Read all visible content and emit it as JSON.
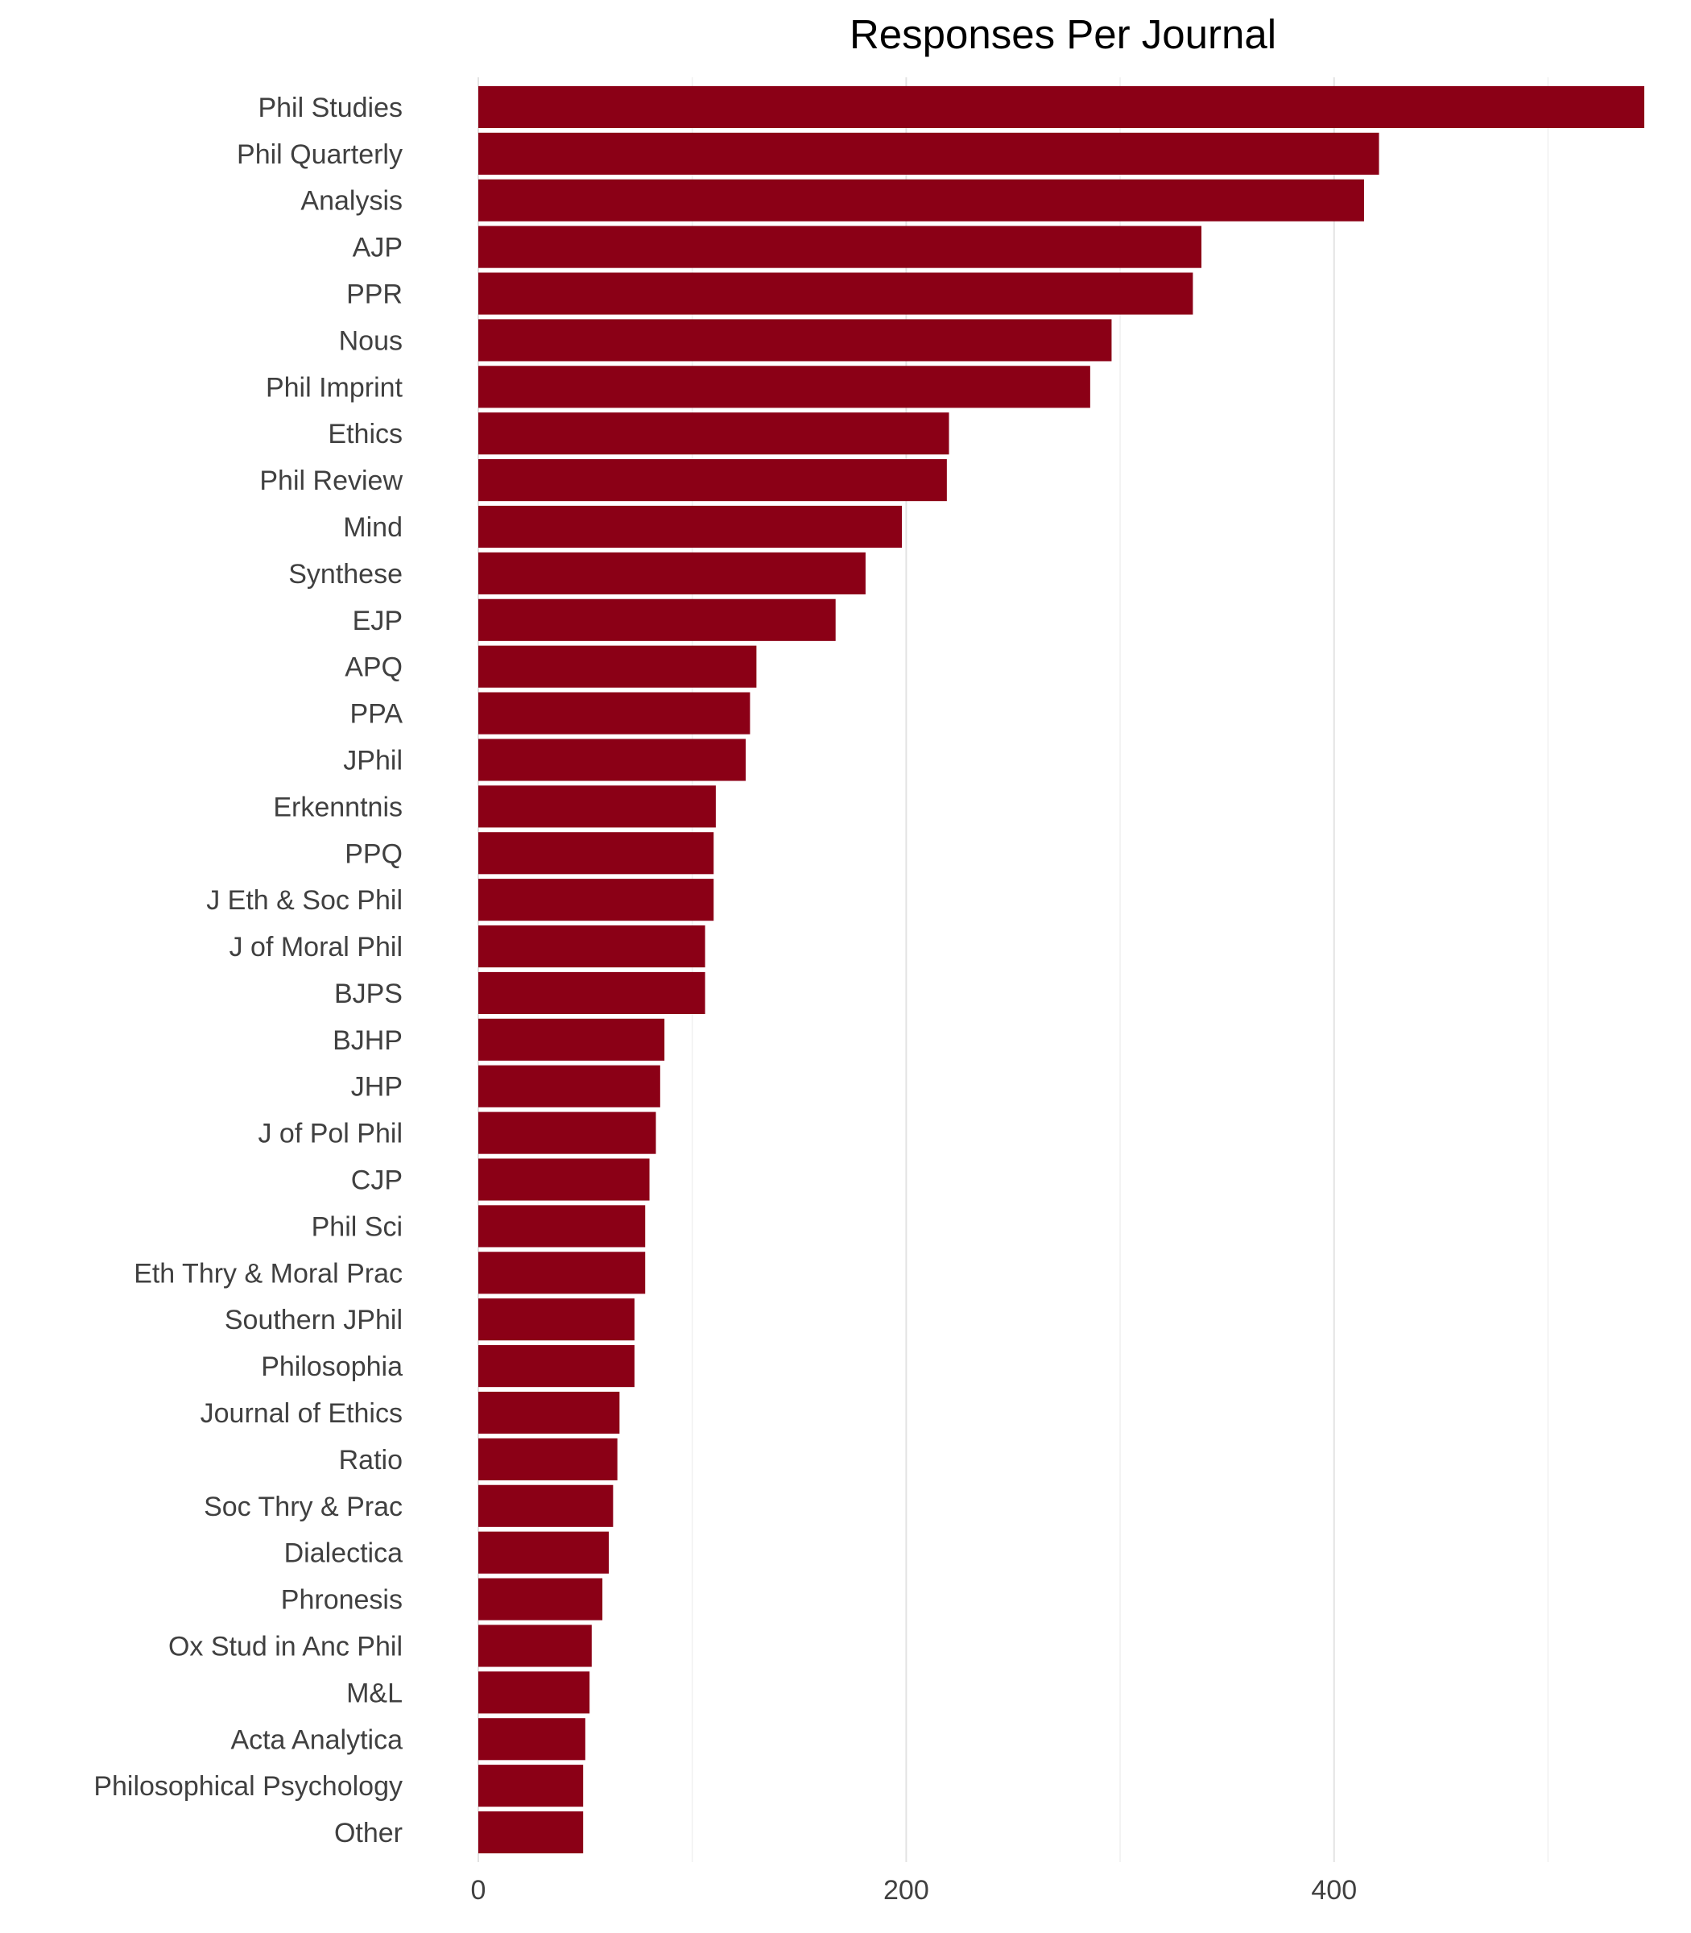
{
  "chart_data": {
    "type": "bar",
    "orientation": "horizontal",
    "title": "Responses Per Journal",
    "xlabel": "",
    "ylabel": "",
    "xlim": [
      0,
      545
    ],
    "xticks": [
      0,
      200,
      400
    ],
    "grid": true,
    "legend": "none",
    "bar_color": "#8b0016",
    "categories": [
      "Phil Studies",
      "Phil Quarterly",
      "Analysis",
      "AJP",
      "PPR",
      "Nous",
      "Phil Imprint",
      "Ethics",
      "Phil Review",
      "Mind",
      "Synthese",
      "EJP",
      "APQ",
      "PPA",
      "JPhil",
      "Erkenntnis",
      "PPQ",
      "J Eth & Soc Phil",
      "J of Moral Phil",
      "BJPS",
      "BJHP",
      "JHP",
      "J of Pol Phil",
      "CJP",
      "Phil Sci",
      "Eth Thry & Moral Prac",
      "Southern JPhil",
      "Philosophia",
      "Journal of Ethics",
      "Ratio",
      "Soc Thry & Prac",
      "Dialectica",
      "Phronesis",
      "Ox Stud in Anc Phil",
      "M&L",
      "Acta Analytica",
      "Philosophical Psychology",
      "Other"
    ],
    "values": [
      545,
      421,
      414,
      338,
      334,
      296,
      286,
      220,
      219,
      198,
      181,
      167,
      130,
      127,
      125,
      111,
      110,
      110,
      106,
      106,
      87,
      85,
      83,
      80,
      78,
      78,
      73,
      73,
      66,
      65,
      63,
      61,
      58,
      53,
      52,
      50,
      49,
      49
    ]
  }
}
